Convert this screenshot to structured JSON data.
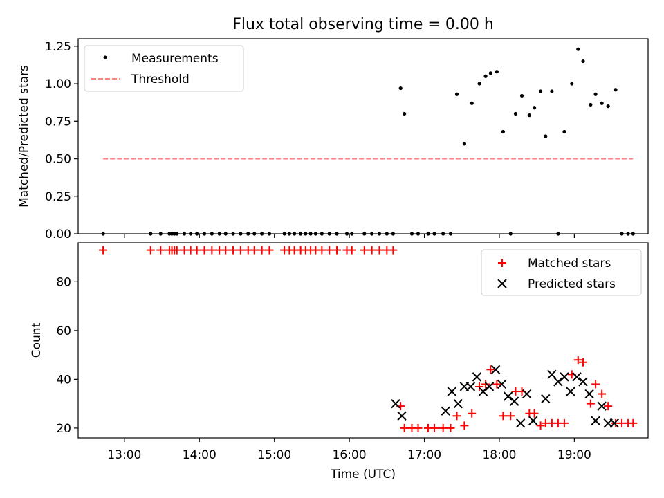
{
  "figure": {
    "title": "Flux total observing time = 0.00 h"
  },
  "chart_data": [
    {
      "type": "scatter",
      "panel": "top",
      "title": "",
      "xlabel": "",
      "ylabel": "Matched/Predicted stars",
      "ylim": [
        0,
        1.3
      ],
      "yticks": [
        0.0,
        0.25,
        0.5,
        0.75,
        1.0,
        1.25
      ],
      "ytick_labels": [
        "0.00",
        "0.25",
        "0.50",
        "0.75",
        "1.00",
        "1.25"
      ],
      "grid": false,
      "legend": "top-left",
      "series": [
        {
          "name": "Measurements",
          "kind": "points",
          "color": "#000000",
          "x": [
            "12:43",
            "13:21",
            "13:29",
            "13:36",
            "13:38",
            "13:40",
            "13:42",
            "13:48",
            "13:53",
            "13:58",
            "14:04",
            "14:10",
            "14:16",
            "14:21",
            "14:27",
            "14:33",
            "14:39",
            "14:44",
            "14:50",
            "14:56",
            "15:08",
            "15:12",
            "15:16",
            "15:21",
            "15:25",
            "15:29",
            "15:33",
            "15:38",
            "15:44",
            "15:50",
            "15:58",
            "16:02",
            "16:12",
            "16:18",
            "16:24",
            "16:30",
            "16:35",
            "16:41",
            "16:44",
            "16:50",
            "16:55",
            "17:03",
            "17:08",
            "17:15",
            "17:21",
            "17:26",
            "17:32",
            "17:38",
            "17:44",
            "17:49",
            "17:53",
            "17:58",
            "18:03",
            "18:09",
            "18:13",
            "18:18",
            "18:24",
            "18:28",
            "18:33",
            "18:37",
            "18:42",
            "18:47",
            "18:52",
            "18:58",
            "19:03",
            "19:07",
            "19:13",
            "19:17",
            "19:22",
            "19:27",
            "19:33",
            "19:38",
            "19:43",
            "19:47"
          ],
          "y": [
            0,
            0,
            0,
            0,
            0,
            0,
            0,
            0,
            0,
            0,
            0,
            0,
            0,
            0,
            0,
            0,
            0,
            0,
            0,
            0,
            0,
            0,
            0,
            0,
            0,
            0,
            0,
            0,
            0,
            0,
            0,
            0,
            0,
            0,
            0,
            0,
            0,
            0.97,
            0.8,
            0,
            0,
            0,
            0,
            0,
            0,
            0.93,
            0.6,
            0.87,
            1.0,
            1.05,
            1.07,
            1.08,
            0.68,
            0,
            0.8,
            0.92,
            0.79,
            0.84,
            0.95,
            0.65,
            0.95,
            0,
            0.68,
            1.0,
            1.23,
            1.15,
            0.86,
            0.93,
            0.87,
            0.85,
            0.96,
            0,
            0,
            0
          ]
        },
        {
          "name": "Threshold",
          "kind": "dashed-line",
          "color": "#ff7f7f",
          "x": [
            "12:43",
            "19:47"
          ],
          "y": [
            0.5,
            0.5
          ]
        }
      ]
    },
    {
      "type": "scatter",
      "panel": "bottom",
      "title": "",
      "xlabel": "Time (UTC)",
      "ylabel": "Count",
      "ylim": [
        16,
        96
      ],
      "yticks": [
        20,
        40,
        60,
        80
      ],
      "ytick_labels": [
        "20",
        "40",
        "60",
        "80"
      ],
      "xlim": [
        "12:23",
        "19:59"
      ],
      "xticks": [
        "13:00",
        "14:00",
        "15:00",
        "16:00",
        "17:00",
        "18:00",
        "19:00"
      ],
      "xtick_labels": [
        "13:00",
        "14:00",
        "15:00",
        "16:00",
        "17:00",
        "18:00",
        "19:00"
      ],
      "grid": false,
      "legend": "top-right",
      "series": [
        {
          "name": "Matched stars",
          "marker": "+",
          "color": "#ff0000",
          "x": [
            "12:43",
            "13:21",
            "13:29",
            "13:36",
            "13:38",
            "13:40",
            "13:42",
            "13:48",
            "13:53",
            "13:58",
            "14:04",
            "14:10",
            "14:16",
            "14:21",
            "14:27",
            "14:33",
            "14:39",
            "14:44",
            "14:50",
            "14:56",
            "15:08",
            "15:12",
            "15:16",
            "15:21",
            "15:25",
            "15:29",
            "15:33",
            "15:38",
            "15:44",
            "15:50",
            "15:58",
            "16:02",
            "16:12",
            "16:18",
            "16:24",
            "16:30",
            "16:35",
            "16:41",
            "16:44",
            "16:50",
            "16:55",
            "17:03",
            "17:08",
            "17:15",
            "17:21",
            "17:26",
            "17:32",
            "17:38",
            "17:44",
            "17:49",
            "17:53",
            "17:58",
            "18:03",
            "18:09",
            "18:13",
            "18:18",
            "18:24",
            "18:28",
            "18:33",
            "18:37",
            "18:42",
            "18:47",
            "18:52",
            "18:58",
            "19:03",
            "19:07",
            "19:13",
            "19:17",
            "19:22",
            "19:27",
            "19:33",
            "19:38",
            "19:43",
            "19:47"
          ],
          "y": [
            93,
            93,
            93,
            93,
            93,
            93,
            93,
            93,
            93,
            93,
            93,
            93,
            93,
            93,
            93,
            93,
            93,
            93,
            93,
            93,
            93,
            93,
            93,
            93,
            93,
            93,
            93,
            93,
            93,
            93,
            93,
            93,
            93,
            93,
            93,
            93,
            93,
            29,
            20,
            20,
            20,
            20,
            20,
            20,
            20,
            25,
            21,
            26,
            37,
            38,
            44,
            38,
            25,
            25,
            35,
            35,
            26,
            26,
            21,
            22,
            22,
            22,
            22,
            42,
            48,
            47,
            30,
            38,
            34,
            29,
            22,
            22,
            22,
            22
          ]
        },
        {
          "name": "Predicted stars",
          "marker": "x",
          "color": "#000000",
          "x": [
            "16:37",
            "16:42",
            "17:17",
            "17:22",
            "17:27",
            "17:32",
            "17:37",
            "17:42",
            "17:47",
            "17:52",
            "17:57",
            "18:02",
            "18:07",
            "18:12",
            "18:17",
            "18:22",
            "18:27",
            "18:37",
            "18:42",
            "18:47",
            "18:52",
            "18:57",
            "19:02",
            "19:07",
            "19:12",
            "19:17",
            "19:22",
            "19:27",
            "19:32"
          ],
          "y": [
            30,
            25,
            27,
            35,
            30,
            37,
            37,
            41,
            35,
            37,
            44,
            38,
            33,
            31,
            22,
            34,
            23,
            32,
            42,
            39,
            41,
            35,
            41,
            39,
            34,
            23,
            29,
            22,
            22
          ]
        }
      ]
    }
  ]
}
